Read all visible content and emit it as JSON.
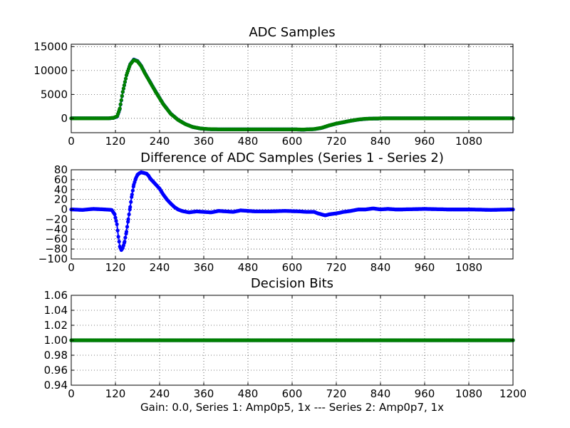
{
  "chart_data": [
    {
      "type": "line",
      "title": "ADC Samples",
      "xlabel": "",
      "ylabel": "",
      "xlim": [
        0,
        1200
      ],
      "ylim": [
        -3000,
        15500
      ],
      "xticks": [
        "0",
        "120",
        "240",
        "360",
        "480",
        "600",
        "720",
        "840",
        "960",
        "1080"
      ],
      "yticks": [
        "0",
        "5000",
        "10000",
        "15000"
      ],
      "grid": true,
      "legend": "none",
      "series": [
        {
          "color": "#0000ff",
          "marker": "dot",
          "x": [
            0,
            100,
            115,
            125,
            132,
            140,
            150,
            160,
            170,
            180,
            190,
            200,
            215,
            230,
            250,
            270,
            290,
            310,
            330,
            350,
            370,
            400,
            450,
            500,
            550,
            600,
            630,
            660,
            680,
            700,
            720,
            740,
            760,
            780,
            800,
            820,
            850,
            900,
            1000,
            1100,
            1200
          ],
          "y": [
            0,
            0,
            100,
            400,
            2000,
            5500,
            9000,
            11300,
            12300,
            12000,
            11000,
            9500,
            7500,
            5500,
            3000,
            1000,
            -300,
            -1200,
            -1800,
            -2100,
            -2250,
            -2300,
            -2300,
            -2300,
            -2300,
            -2300,
            -2350,
            -2250,
            -2000,
            -1500,
            -1100,
            -800,
            -500,
            -250,
            -100,
            -50,
            0,
            0,
            0,
            0,
            0
          ]
        },
        {
          "color": "#008000",
          "marker": "dot",
          "x": [
            0,
            100,
            115,
            125,
            132,
            140,
            150,
            160,
            170,
            180,
            190,
            200,
            215,
            230,
            250,
            270,
            290,
            310,
            330,
            350,
            370,
            400,
            450,
            500,
            550,
            600,
            630,
            660,
            680,
            700,
            720,
            740,
            760,
            780,
            800,
            820,
            850,
            900,
            1000,
            1100,
            1200
          ],
          "y": [
            0,
            0,
            110,
            480,
            2080,
            5550,
            9020,
            11250,
            12230,
            11930,
            10940,
            9440,
            7450,
            5450,
            2960,
            970,
            -320,
            -1210,
            -1800,
            -2100,
            -2245,
            -2295,
            -2297,
            -2297,
            -2297,
            -2297,
            -2347,
            -2243,
            -1990,
            -1490,
            -1090,
            -792,
            -493,
            -247,
            -98,
            -49,
            0,
            0,
            0,
            0,
            0
          ]
        }
      ]
    },
    {
      "type": "line",
      "title": "Difference of ADC Samples (Series 1 - Series 2)",
      "xlabel": "",
      "ylabel": "",
      "xlim": [
        0,
        1200
      ],
      "ylim": [
        -100,
        80
      ],
      "xticks": [
        "0",
        "120",
        "240",
        "360",
        "480",
        "600",
        "720",
        "840",
        "960",
        "1080"
      ],
      "yticks": [
        "−100",
        "−80",
        "−60",
        "−40",
        "−20",
        "0",
        "20",
        "40",
        "60",
        "80"
      ],
      "grid": true,
      "legend": "none",
      "series": [
        {
          "color": "#0000ff",
          "marker": "dot",
          "x": [
            0,
            30,
            60,
            90,
            110,
            118,
            124,
            128,
            132,
            136,
            140,
            145,
            150,
            155,
            160,
            165,
            170,
            175,
            180,
            185,
            190,
            195,
            200,
            205,
            210,
            215,
            220,
            230,
            240,
            250,
            260,
            270,
            280,
            290,
            300,
            320,
            340,
            360,
            380,
            400,
            420,
            440,
            460,
            480,
            500,
            540,
            580,
            620,
            640,
            660,
            670,
            680,
            690,
            700,
            720,
            740,
            760,
            780,
            800,
            820,
            840,
            860,
            880,
            900,
            960,
            1020,
            1080,
            1140,
            1200
          ],
          "y": [
            0,
            -1,
            1,
            0,
            -1,
            -10,
            -30,
            -55,
            -75,
            -82,
            -78,
            -65,
            -45,
            -20,
            5,
            30,
            50,
            62,
            70,
            73,
            75,
            74,
            73,
            72,
            68,
            62,
            58,
            50,
            42,
            30,
            20,
            12,
            5,
            0,
            -3,
            -6,
            -4,
            -5,
            -6,
            -3,
            -4,
            -5,
            -2,
            -3,
            -4,
            -4,
            -3,
            -4,
            -5,
            -5,
            -8,
            -10,
            -12,
            -10,
            -8,
            -5,
            -3,
            0,
            0,
            2,
            0,
            1,
            0,
            0,
            1,
            0,
            0,
            -1,
            0
          ]
        }
      ]
    },
    {
      "type": "line",
      "title": "Decision Bits",
      "xlabel": "Gain: 0.0, Series 1: Amp0p5, 1x --- Series 2: Amp0p7, 1x",
      "ylabel": "",
      "xlim": [
        0,
        1200
      ],
      "ylim": [
        0.94,
        1.06
      ],
      "xticks": [
        "0",
        "120",
        "240",
        "360",
        "480",
        "600",
        "720",
        "840",
        "960",
        "1080",
        "1200"
      ],
      "yticks": [
        "0.94",
        "0.96",
        "0.98",
        "1.00",
        "1.02",
        "1.04",
        "1.06"
      ],
      "grid": true,
      "legend": "none",
      "series": [
        {
          "color": "#0000ff",
          "marker": "dot",
          "x": [
            0,
            1200
          ],
          "y": [
            1.0,
            1.0
          ]
        },
        {
          "color": "#008000",
          "marker": "dot",
          "x": [
            0,
            1200
          ],
          "y": [
            1.0,
            1.0
          ]
        }
      ]
    }
  ]
}
